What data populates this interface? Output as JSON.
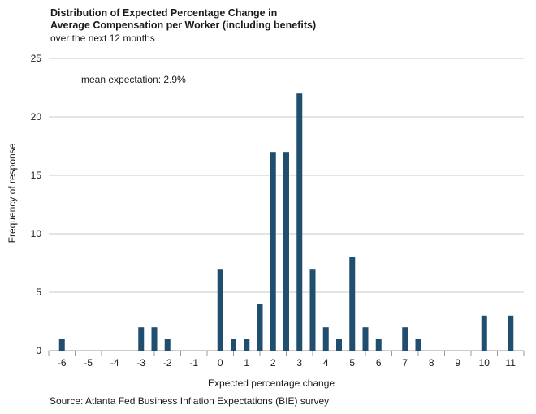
{
  "chart_data": {
    "type": "bar",
    "title_line1": "Distribution of Expected Percentage Change in",
    "title_line2": "Average Compensation per Worker (including benefits)",
    "subtitle": "over  the next 12 months",
    "annotation": "mean expectation: 2.9%",
    "xlabel": "Expected percentage change",
    "ylabel": "Frequency of response",
    "source": "Source: Atlanta Fed Business Inflation Expectations (BIE) survey",
    "ylim": [
      0,
      25
    ],
    "yticks": [
      0,
      5,
      10,
      15,
      20,
      25
    ],
    "xlim": [
      -6.5,
      11.5
    ],
    "xticks": [
      -6,
      -5,
      -4,
      -3,
      -2,
      -1,
      0,
      1,
      2,
      3,
      4,
      5,
      6,
      7,
      8,
      9,
      10,
      11
    ],
    "bar_color": "#1f4e6e",
    "grid": true,
    "x": [
      -6,
      -3,
      -2.5,
      -2,
      0,
      0.5,
      1,
      1.5,
      2,
      2.5,
      3,
      3.5,
      4,
      4.5,
      5,
      5.5,
      6,
      7,
      7.5,
      10,
      11
    ],
    "values": [
      1,
      2,
      2,
      1,
      7,
      1,
      1,
      4,
      17,
      17,
      22,
      7,
      2,
      1,
      8,
      2,
      1,
      2,
      1,
      3,
      3
    ]
  }
}
